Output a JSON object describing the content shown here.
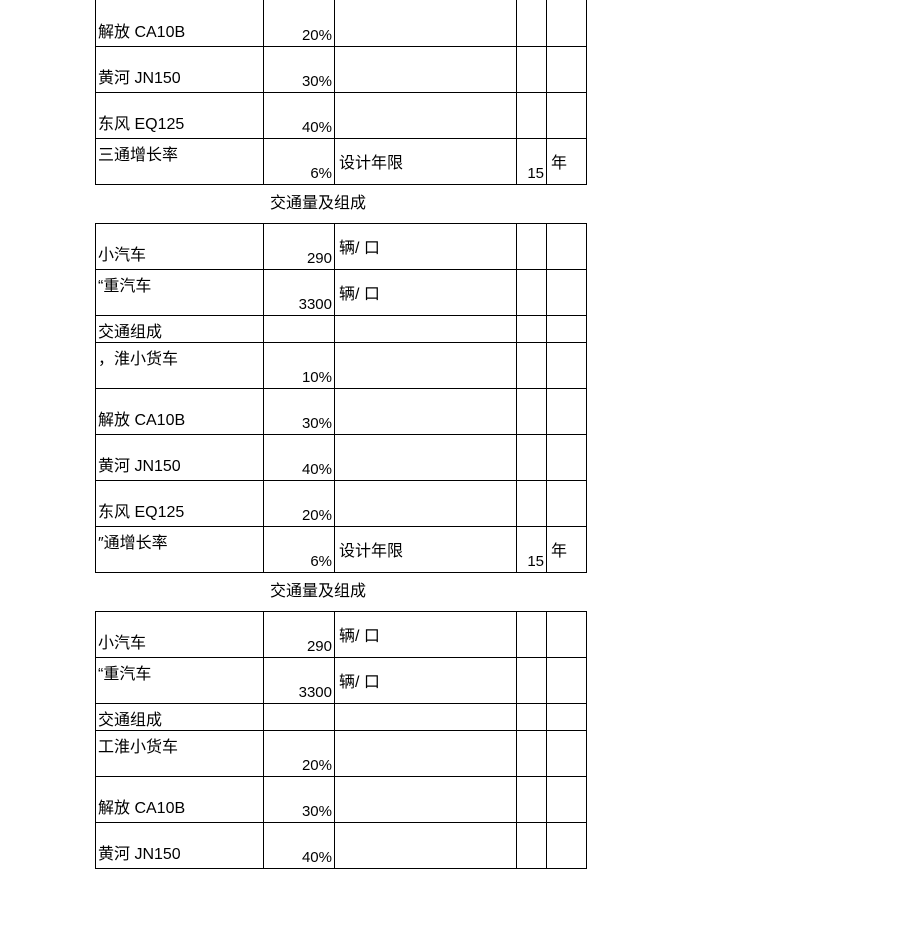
{
  "section1": {
    "rows": [
      {
        "label": "解放 CA10B",
        "value": "20%",
        "mid": "",
        "num2": "",
        "unit": ""
      },
      {
        "label": "黄河 JN150",
        "value": "30%",
        "mid": "",
        "num2": "",
        "unit": ""
      },
      {
        "label": "东风 EQ125",
        "value": "40%",
        "mid": "",
        "num2": "",
        "unit": ""
      },
      {
        "label": "三通增长率",
        "value": "6%",
        "mid": "设计年限",
        "num2": "15",
        "unit": "年"
      }
    ],
    "caption": "交通量及组成"
  },
  "section2": {
    "rows": [
      {
        "label": "小汽车",
        "value": "290",
        "mid": "辆/ 口",
        "num2": "",
        "unit": ""
      },
      {
        "label": "“重汽车",
        "value": "3300",
        "mid": "辆/ 口",
        "num2": "",
        "unit": ""
      },
      {
        "label": "交通组成",
        "value": "",
        "mid": "",
        "num2": "",
        "unit": "",
        "short": true
      },
      {
        "label": "，淮小货车",
        "value": "10%",
        "mid": "",
        "num2": "",
        "unit": ""
      },
      {
        "label": "解放 CA10B",
        "value": "30%",
        "mid": "",
        "num2": "",
        "unit": ""
      },
      {
        "label": "黄河 JN150",
        "value": "40%",
        "mid": "",
        "num2": "",
        "unit": ""
      },
      {
        "label": "东风 EQ125",
        "value": "20%",
        "mid": "",
        "num2": "",
        "unit": ""
      },
      {
        "label": "″通增长率",
        "value": "6%",
        "mid": "设计年限",
        "num2": "15",
        "unit": "年"
      }
    ],
    "caption": "交通量及组成"
  },
  "section3": {
    "rows": [
      {
        "label": "小汽车",
        "value": "290",
        "mid": "辆/ 口",
        "num2": "",
        "unit": ""
      },
      {
        "label": "“重汽车",
        "value": "3300",
        "mid": "辆/ 口",
        "num2": "",
        "unit": ""
      },
      {
        "label": "交通组成",
        "value": "",
        "mid": "",
        "num2": "",
        "unit": "",
        "short": true
      },
      {
        "label": "工淮小货车",
        "value": "20%",
        "mid": "",
        "num2": "",
        "unit": ""
      },
      {
        "label": "解放 CA10B",
        "value": "30%",
        "mid": "",
        "num2": "",
        "unit": ""
      },
      {
        "label": "黄河 JN150",
        "value": "40%",
        "mid": "",
        "num2": "",
        "unit": ""
      }
    ]
  }
}
